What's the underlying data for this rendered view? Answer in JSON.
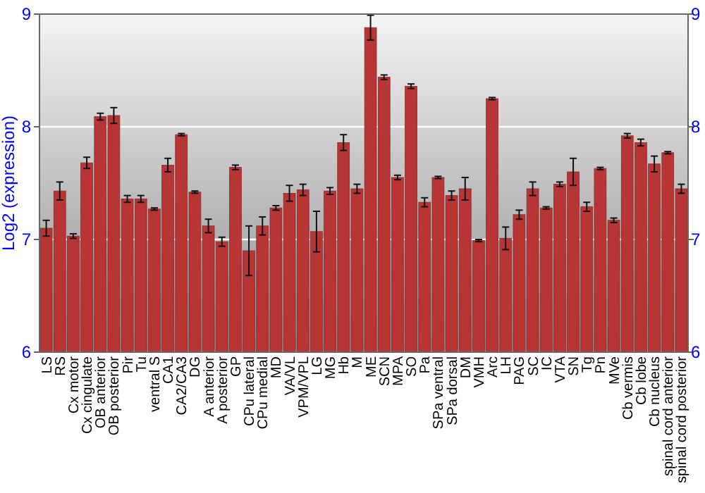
{
  "chart_data": {
    "type": "bar",
    "ylabel": "Log2 (expression)",
    "categories": [
      "LS",
      "RS",
      "Cx motor",
      "Cx cingulate",
      "OB anterior",
      "OB posterior",
      "Pir",
      "Tu",
      "ventral S",
      "CA1",
      "CA2/CA3",
      "DG",
      "A anterior",
      "A posterior",
      "GP",
      "CPu lateral",
      "CPu medial",
      "MD",
      "VA/VL",
      "VPM/VPL",
      "LG",
      "MG",
      "Hb",
      "M",
      "ME",
      "SCN",
      "MPA",
      "SO",
      "Pa",
      "SPa ventral",
      "SPa dorsal",
      "DM",
      "VMH",
      "Arc",
      "LH",
      "PAG",
      "SC",
      "IC",
      "VTA",
      "SN",
      "Tg",
      "Pn",
      "MVe",
      "Cb vermis",
      "Cb lobe",
      "Cb nucleus",
      "spinal cord anterior",
      "spinal cord posterior"
    ],
    "values": [
      7.1,
      7.43,
      7.03,
      7.68,
      8.09,
      8.1,
      7.36,
      7.36,
      7.27,
      7.66,
      7.93,
      7.42,
      7.12,
      6.98,
      7.64,
      6.9,
      7.12,
      7.28,
      7.41,
      7.44,
      7.07,
      7.43,
      7.86,
      7.45,
      8.88,
      8.44,
      7.55,
      8.36,
      7.33,
      7.55,
      7.39,
      7.45,
      6.99,
      8.25,
      7.01,
      7.22,
      7.45,
      7.28,
      7.49,
      7.6,
      7.29,
      7.63,
      7.17,
      7.92,
      7.86,
      7.67,
      7.77,
      7.45
    ],
    "errors": [
      0.07,
      0.08,
      0.02,
      0.05,
      0.03,
      0.07,
      0.03,
      0.03,
      0.01,
      0.06,
      0.01,
      0.01,
      0.06,
      0.04,
      0.02,
      0.22,
      0.08,
      0.02,
      0.07,
      0.05,
      0.18,
      0.03,
      0.07,
      0.04,
      0.11,
      0.02,
      0.02,
      0.02,
      0.04,
      0.01,
      0.04,
      0.1,
      0.01,
      0.01,
      0.1,
      0.04,
      0.06,
      0.01,
      0.02,
      0.12,
      0.04,
      0.01,
      0.02,
      0.02,
      0.03,
      0.07,
      0.01,
      0.04
    ],
    "color": "#b83535",
    "ylim": [
      6,
      9
    ],
    "yticks": [
      6,
      7,
      8,
      9
    ],
    "y2lim": [
      6,
      9
    ],
    "y2ticks": [
      6,
      7,
      8,
      9
    ],
    "grid": "y"
  }
}
